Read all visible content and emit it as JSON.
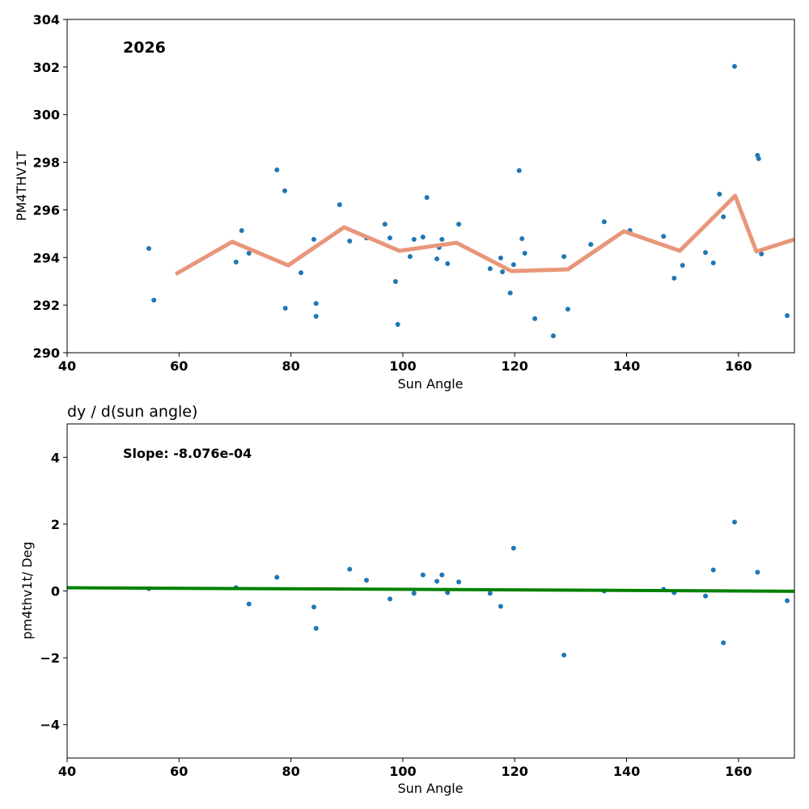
{
  "chart_data": [
    {
      "type": "scatter",
      "title": "",
      "annotation": "2026",
      "xlabel": "Sun Angle",
      "ylabel": "PM4THV1T",
      "xlim": [
        40,
        170
      ],
      "ylim": [
        290,
        304
      ],
      "xticks": [
        40,
        60,
        80,
        100,
        120,
        140,
        160
      ],
      "yticks": [
        290,
        292,
        294,
        296,
        298,
        300,
        302,
        304
      ],
      "grid": false,
      "colors": {
        "points": "#1f77b4",
        "line": "#e9967a"
      },
      "points": {
        "x": [
          54.6,
          55.5,
          70.2,
          71.2,
          72.5,
          77.5,
          78.9,
          79.0,
          81.8,
          84.1,
          84.5,
          84.5,
          88.7,
          90.5,
          93.5,
          96.8,
          97.7,
          98.7,
          99.1,
          101.3,
          102.0,
          103.6,
          104.3,
          106.1,
          106.5,
          107.0,
          108.0,
          110.0,
          115.6,
          117.5,
          117.8,
          119.2,
          119.8,
          120.8,
          121.3,
          121.8,
          123.6,
          126.9,
          128.8,
          129.5,
          133.6,
          136.0,
          140.6,
          146.6,
          148.5,
          150.0,
          154.1,
          155.5,
          156.6,
          157.3,
          159.3,
          163.4,
          163.6,
          164.1,
          168.7
        ],
        "y": [
          294.38,
          292.21,
          293.81,
          295.13,
          294.18,
          297.68,
          296.8,
          291.87,
          293.36,
          294.76,
          292.07,
          291.53,
          296.22,
          294.69,
          294.82,
          295.4,
          294.82,
          292.99,
          291.19,
          294.04,
          294.76,
          294.86,
          296.52,
          293.94,
          294.42,
          294.76,
          293.74,
          295.4,
          293.53,
          293.98,
          293.4,
          292.51,
          293.7,
          297.65,
          294.79,
          294.18,
          291.43,
          290.71,
          294.04,
          291.83,
          294.55,
          295.5,
          295.13,
          294.89,
          293.13,
          293.67,
          294.21,
          293.77,
          296.66,
          295.71,
          302.03,
          298.29,
          298.15,
          294.15,
          291.56
        ]
      },
      "line": {
        "x": [
          59.4,
          69.5,
          79.5,
          89.5,
          99.4,
          109.6,
          119.4,
          129.5,
          139.5,
          149.5,
          159.4,
          163.2,
          170.0
        ],
        "y": [
          293.3,
          294.66,
          293.67,
          295.27,
          294.28,
          294.62,
          293.43,
          293.5,
          295.1,
          294.28,
          296.59,
          294.25,
          294.76
        ]
      }
    },
    {
      "type": "scatter",
      "title": "dy / d(sun angle)",
      "annotation": "Slope: -8.076e-04",
      "xlabel": "Sun Angle",
      "ylabel": "pm4thv1t/ Deg",
      "xlim": [
        40,
        170
      ],
      "ylim": [
        -5,
        5
      ],
      "xticks": [
        40,
        60,
        80,
        100,
        120,
        140,
        160
      ],
      "yticks": [
        -4,
        -2,
        0,
        2,
        4
      ],
      "ytick_labels": [
        "−4",
        "−2",
        "0",
        "2",
        "4"
      ],
      "grid": false,
      "colors": {
        "points": "#1f77b4",
        "line": "#008000"
      },
      "points": {
        "x": [
          54.6,
          70.2,
          72.5,
          77.5,
          84.1,
          84.5,
          90.5,
          93.5,
          97.7,
          102.0,
          103.6,
          106.1,
          107.0,
          108.0,
          110.0,
          115.6,
          117.5,
          119.8,
          128.8,
          136.0,
          146.6,
          148.5,
          154.1,
          155.5,
          157.3,
          159.3,
          163.4,
          168.7
        ],
        "y": [
          0.07,
          0.1,
          -0.39,
          0.41,
          -0.48,
          -1.12,
          0.65,
          0.32,
          -0.24,
          -0.07,
          0.48,
          0.29,
          0.48,
          -0.05,
          0.27,
          -0.07,
          -0.46,
          1.28,
          -1.92,
          0.0,
          0.05,
          -0.05,
          -0.15,
          0.63,
          -1.55,
          2.06,
          0.56,
          -0.29
        ]
      },
      "line": {
        "x": [
          40,
          170
        ],
        "y": [
          0.097,
          -0.008
        ]
      }
    }
  ]
}
